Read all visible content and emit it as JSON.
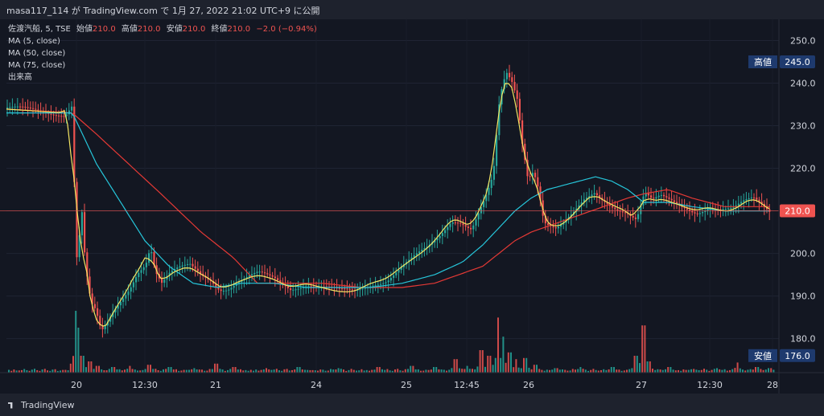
{
  "header": {
    "attribution": "masa117_114 が TradingView.com で 1月 27, 2022 21:02 UTC+9 に公開"
  },
  "legend": {
    "symbol": "佐渡汽船, 5, TSE",
    "open_label": "始値",
    "open_value": "210.0",
    "high_label": "高値",
    "high_value": "210.0",
    "low_label": "安値",
    "low_value": "210.0",
    "close_label": "終値",
    "close_value": "210.0",
    "change": "−2.0 (−0.94%)",
    "ma5": "MA (5, close)",
    "ma50": "MA (50, close)",
    "ma75": "MA (75, close)",
    "volume": "出来高"
  },
  "footer": {
    "brand": "TradingView"
  },
  "chart_data": {
    "type": "candlestick",
    "ylim": [
      172,
      255
    ],
    "y_ticks": [
      "250.0",
      "240.0",
      "230.0",
      "220.0",
      "210.0",
      "200.0",
      "190.0",
      "180.0"
    ],
    "x_ticks": [
      "20",
      "12:30",
      "21",
      "24",
      "25",
      "12:45",
      "26",
      "27",
      "12:30",
      "28"
    ],
    "price_tags": [
      {
        "label": "高値",
        "value": "245.0"
      },
      {
        "label": "",
        "value": "210.0"
      },
      {
        "label": "安値",
        "value": "176.0"
      }
    ],
    "colors": {
      "up": "#26a69a",
      "down": "#ef5350",
      "ma5": "#f5e663",
      "ma50": "#26c6da",
      "ma75": "#e53935",
      "tag_bg": "#1e3a6e",
      "last_bg": "#ef5350",
      "bg": "#131722"
    },
    "price_series": [
      [
        0,
        234
      ],
      [
        80,
        233
      ],
      [
        88,
        235
      ],
      [
        95,
        196
      ],
      [
        100,
        212
      ],
      [
        105,
        197
      ],
      [
        112,
        188
      ],
      [
        118,
        186
      ],
      [
        125,
        181
      ],
      [
        132,
        183
      ],
      [
        140,
        186
      ],
      [
        150,
        189
      ],
      [
        160,
        192
      ],
      [
        170,
        196
      ],
      [
        180,
        198
      ],
      [
        186,
        202
      ],
      [
        192,
        196
      ],
      [
        200,
        193
      ],
      [
        210,
        195
      ],
      [
        220,
        196
      ],
      [
        235,
        197
      ],
      [
        250,
        195
      ],
      [
        262,
        194
      ],
      [
        272,
        192
      ],
      [
        282,
        192
      ],
      [
        292,
        193
      ],
      [
        305,
        194
      ],
      [
        320,
        195
      ],
      [
        340,
        194
      ],
      [
        360,
        192
      ],
      [
        380,
        193
      ],
      [
        400,
        192
      ],
      [
        420,
        191
      ],
      [
        440,
        191
      ],
      [
        460,
        193
      ],
      [
        480,
        194
      ],
      [
        500,
        197
      ],
      [
        515,
        199
      ],
      [
        530,
        201
      ],
      [
        545,
        204
      ],
      [
        560,
        208
      ],
      [
        570,
        208
      ],
      [
        585,
        206
      ],
      [
        595,
        210
      ],
      [
        605,
        214
      ],
      [
        612,
        218
      ],
      [
        620,
        236
      ],
      [
        628,
        242
      ],
      [
        635,
        240
      ],
      [
        642,
        236
      ],
      [
        648,
        226
      ],
      [
        655,
        218
      ],
      [
        662,
        220
      ],
      [
        668,
        216
      ],
      [
        675,
        208
      ],
      [
        682,
        207
      ],
      [
        690,
        206
      ],
      [
        700,
        207
      ],
      [
        712,
        209
      ],
      [
        725,
        212
      ],
      [
        738,
        214
      ],
      [
        745,
        213
      ],
      [
        755,
        212
      ],
      [
        765,
        211
      ],
      [
        778,
        210
      ],
      [
        790,
        208
      ],
      [
        800,
        214
      ],
      [
        810,
        212
      ],
      [
        820,
        213
      ],
      [
        835,
        212
      ],
      [
        850,
        211
      ],
      [
        865,
        210
      ],
      [
        880,
        211
      ],
      [
        895,
        210
      ],
      [
        910,
        210
      ],
      [
        925,
        212
      ],
      [
        935,
        213
      ],
      [
        945,
        212
      ],
      [
        958,
        210
      ]
    ],
    "ma50_series": [
      [
        0,
        233
      ],
      [
        90,
        233
      ],
      [
        100,
        229
      ],
      [
        120,
        221
      ],
      [
        150,
        212
      ],
      [
        180,
        203
      ],
      [
        210,
        197
      ],
      [
        240,
        193
      ],
      [
        270,
        192
      ],
      [
        300,
        193
      ],
      [
        340,
        193
      ],
      [
        380,
        192
      ],
      [
        420,
        192
      ],
      [
        460,
        192
      ],
      [
        500,
        193
      ],
      [
        540,
        195
      ],
      [
        575,
        198
      ],
      [
        600,
        202
      ],
      [
        620,
        206
      ],
      [
        640,
        210
      ],
      [
        660,
        213
      ],
      [
        680,
        215
      ],
      [
        700,
        216
      ],
      [
        720,
        217
      ],
      [
        740,
        218
      ],
      [
        760,
        217
      ],
      [
        780,
        215
      ],
      [
        800,
        212
      ],
      [
        830,
        212
      ],
      [
        860,
        211
      ],
      [
        900,
        210
      ],
      [
        958,
        210
      ]
    ],
    "ma75_series": [
      [
        0,
        234
      ],
      [
        90,
        233
      ],
      [
        120,
        228
      ],
      [
        160,
        221
      ],
      [
        200,
        214
      ],
      [
        250,
        205
      ],
      [
        290,
        199
      ],
      [
        320,
        193
      ],
      [
        360,
        193
      ],
      [
        400,
        193
      ],
      [
        450,
        192
      ],
      [
        500,
        192
      ],
      [
        540,
        193
      ],
      [
        570,
        195
      ],
      [
        600,
        197
      ],
      [
        620,
        200
      ],
      [
        640,
        203
      ],
      [
        660,
        205
      ],
      [
        690,
        207
      ],
      [
        720,
        209
      ],
      [
        750,
        211
      ],
      [
        780,
        213
      ],
      [
        800,
        214
      ],
      [
        830,
        215
      ],
      [
        860,
        213
      ],
      [
        900,
        211
      ],
      [
        958,
        211
      ]
    ],
    "volume": [
      [
        93,
        0.55
      ],
      [
        97,
        0.4
      ],
      [
        102,
        0.15
      ],
      [
        110,
        0.1
      ],
      [
        120,
        0.06
      ],
      [
        140,
        0.05
      ],
      [
        160,
        0.06
      ],
      [
        185,
        0.07
      ],
      [
        210,
        0.05
      ],
      [
        240,
        0.04
      ],
      [
        268,
        0.08
      ],
      [
        290,
        0.05
      ],
      [
        330,
        0.04
      ],
      [
        370,
        0.05
      ],
      [
        420,
        0.04
      ],
      [
        470,
        0.05
      ],
      [
        510,
        0.06
      ],
      [
        540,
        0.05
      ],
      [
        565,
        0.12
      ],
      [
        580,
        0.06
      ],
      [
        597,
        0.2
      ],
      [
        607,
        0.15
      ],
      [
        618,
        0.49
      ],
      [
        624,
        0.32
      ],
      [
        632,
        0.18
      ],
      [
        640,
        0.12
      ],
      [
        652,
        0.13
      ],
      [
        665,
        0.07
      ],
      [
        690,
        0.04
      ],
      [
        720,
        0.05
      ],
      [
        760,
        0.05
      ],
      [
        790,
        0.15
      ],
      [
        799,
        0.42
      ],
      [
        805,
        0.1
      ],
      [
        830,
        0.05
      ],
      [
        860,
        0.03
      ],
      [
        890,
        0.04
      ],
      [
        915,
        0.09
      ],
      [
        940,
        0.05
      ],
      [
        955,
        0.04
      ]
    ]
  }
}
